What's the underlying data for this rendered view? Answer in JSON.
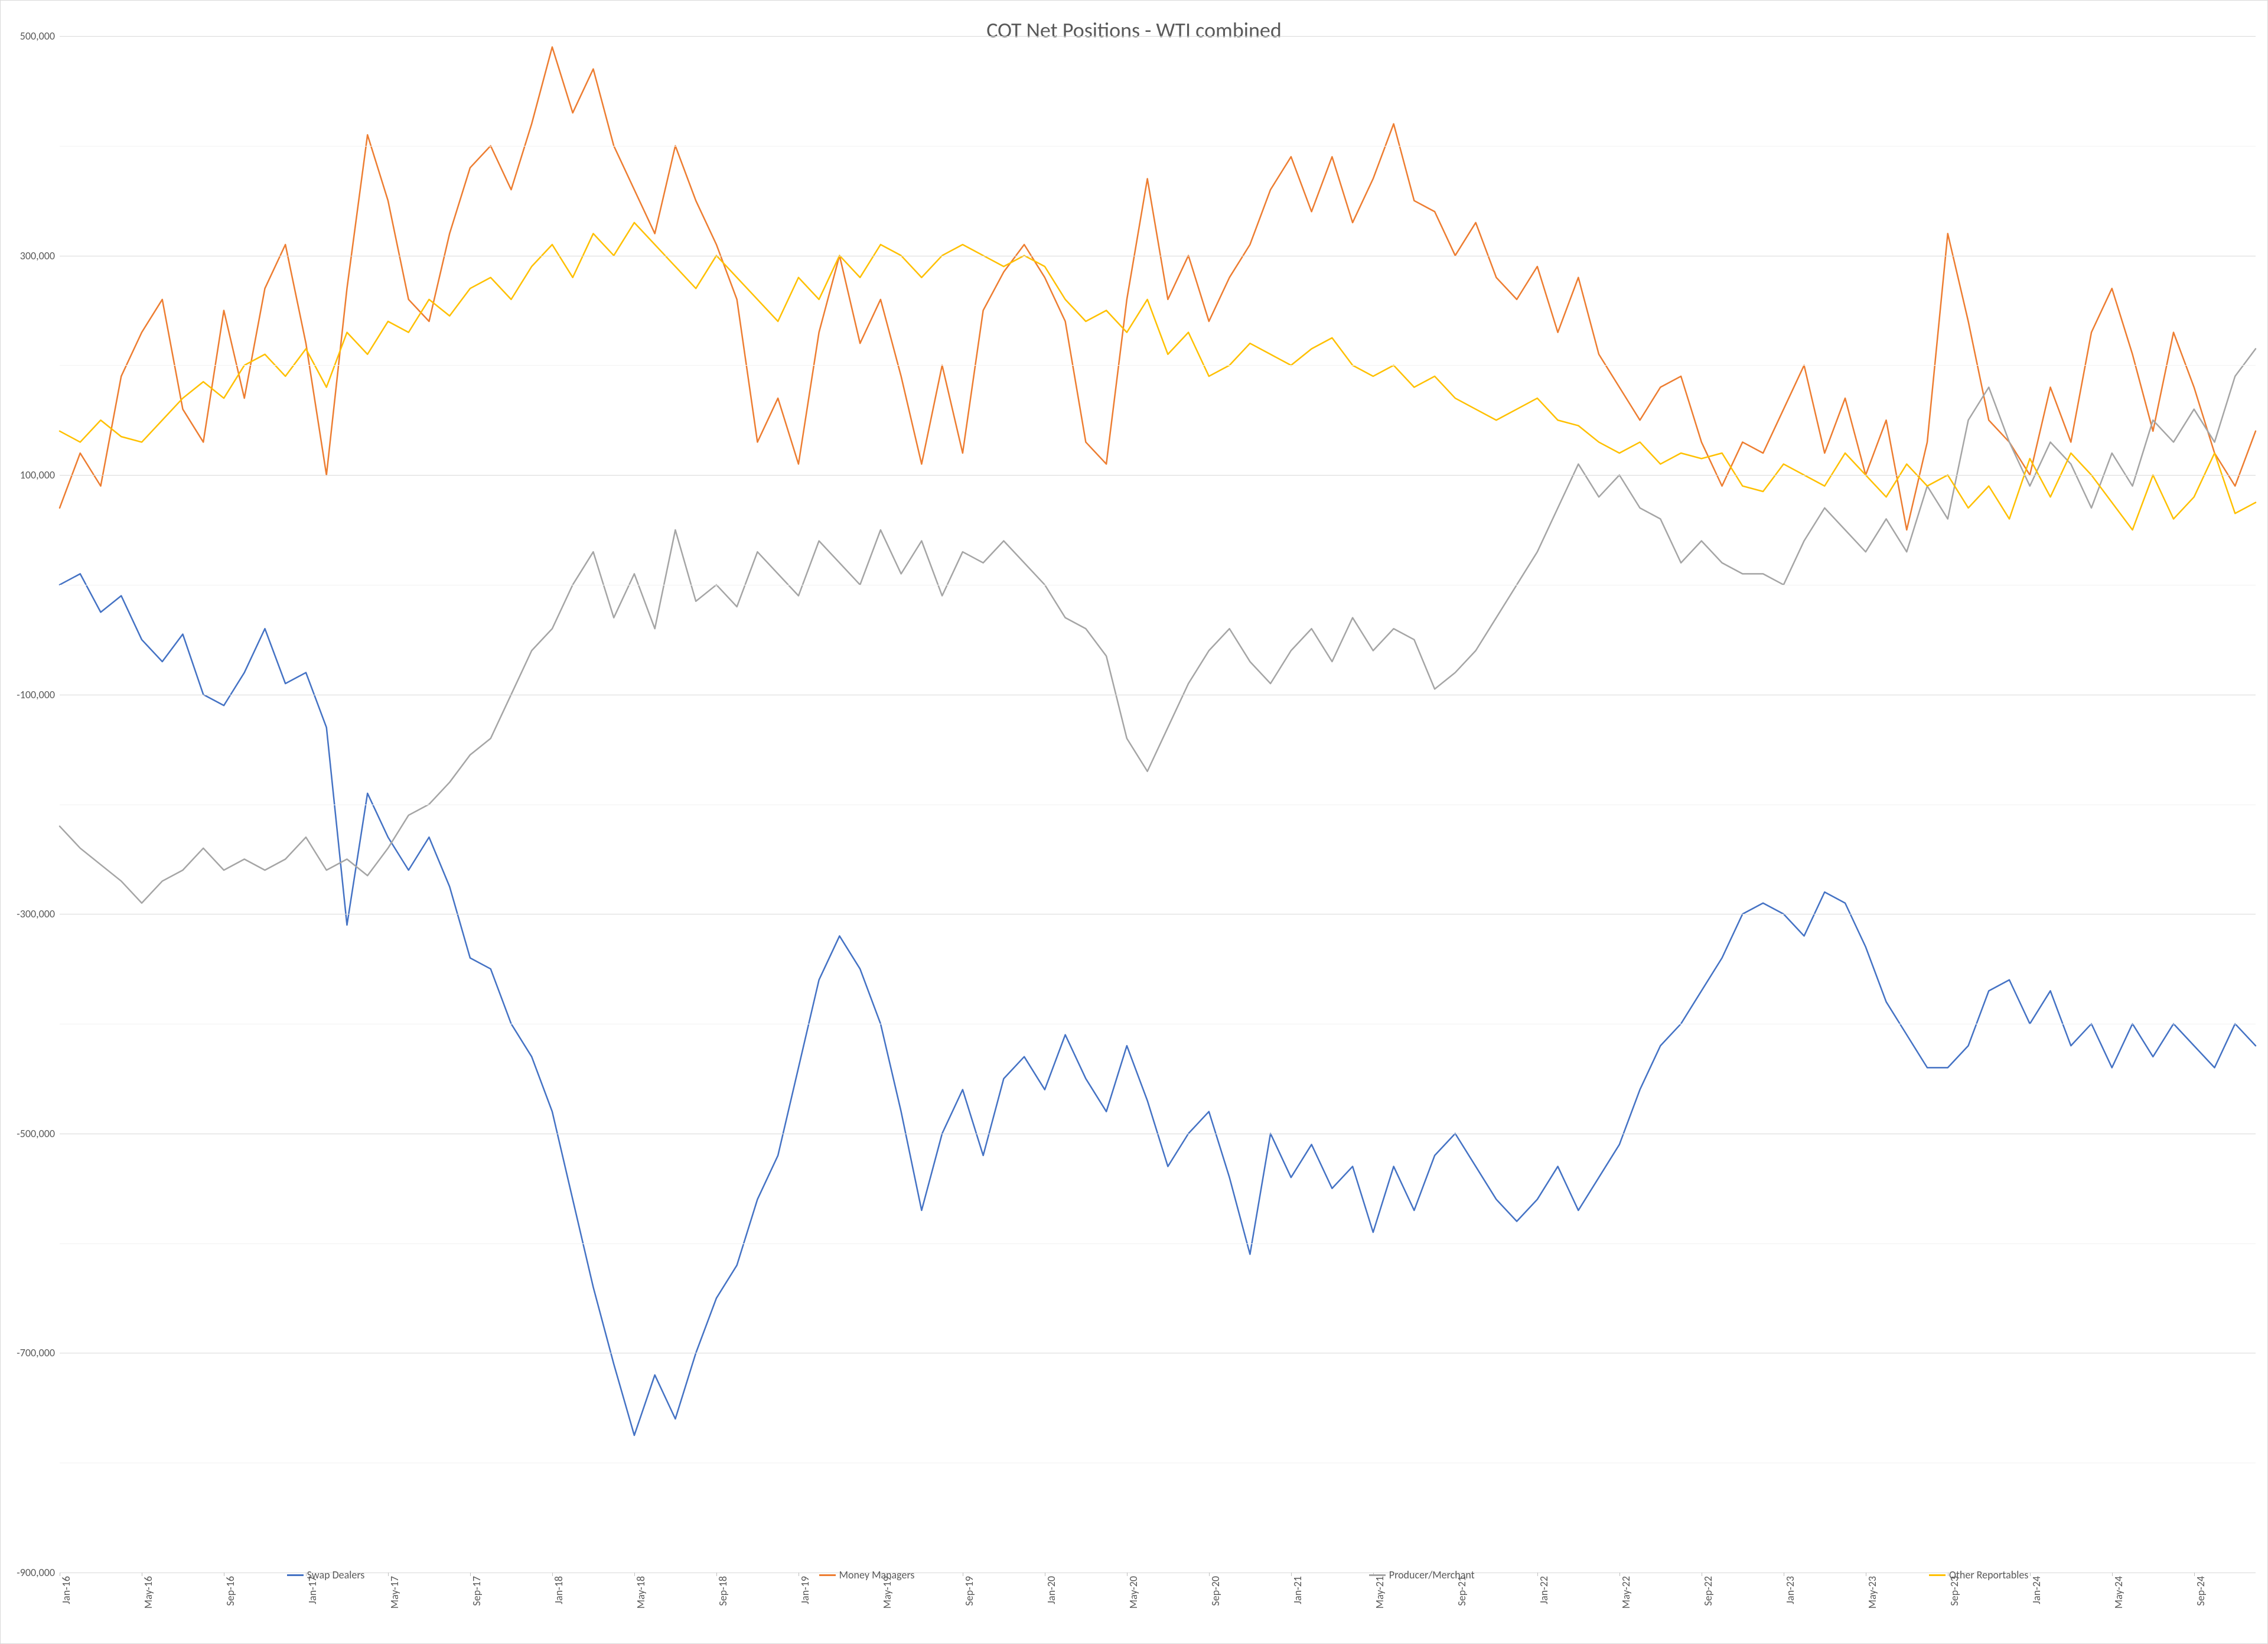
{
  "chart": {
    "type": "line",
    "title": "COT Net Positions - WTI combined",
    "title_fontsize": 36,
    "title_color": "#595959",
    "background_color": "#ffffff",
    "border_color": "#d9d9d9",
    "grid_color": "#d9d9d9",
    "grid_minor_color": "#f2f2f2",
    "axis_label_color": "#595959",
    "axis_label_fontsize": 18,
    "line_width": 2.5,
    "y_axis": {
      "min": -900000,
      "max": 500000,
      "tick_step": 200000,
      "minor_step": 100000,
      "tick_format": "comma",
      "ticks": [
        500000,
        300000,
        100000,
        -100000,
        -300000,
        -500000,
        -700000,
        -900000
      ]
    },
    "x_axis": {
      "tick_rotation": -90,
      "n_points": 108,
      "labels": [
        "Jan-16",
        "",
        "",
        "",
        "May-16",
        "",
        "",
        "",
        "Sep-16",
        "",
        "",
        "",
        "Jan-17",
        "",
        "",
        "",
        "May-17",
        "",
        "",
        "",
        "Sep-17",
        "",
        "",
        "",
        "Jan-18",
        "",
        "",
        "",
        "May-18",
        "",
        "",
        "",
        "Sep-18",
        "",
        "",
        "",
        "Jan-19",
        "",
        "",
        "",
        "May-19",
        "",
        "",
        "",
        "Sep-19",
        "",
        "",
        "",
        "Jan-20",
        "",
        "",
        "",
        "May-20",
        "",
        "",
        "",
        "Sep-20",
        "",
        "",
        "",
        "Jan-21",
        "",
        "",
        "",
        "May-21",
        "",
        "",
        "",
        "Sep-21",
        "",
        "",
        "",
        "Jan-22",
        "",
        "",
        "",
        "May-22",
        "",
        "",
        "",
        "Sep-22",
        "",
        "",
        "",
        "Jan-23",
        "",
        "",
        "",
        "May-23",
        "",
        "",
        "",
        "Sep-23",
        "",
        "",
        "",
        "Jan-24",
        "",
        "",
        "",
        "May-24",
        "",
        "",
        "",
        "Sep-24",
        "",
        "",
        ""
      ],
      "visible_labels": [
        "Jan-16",
        "May-16",
        "Sep-16",
        "Jan-17",
        "May-17",
        "Sep-17",
        "Jan-18",
        "May-18",
        "Sep-18",
        "Jan-19",
        "May-19",
        "Sep-19",
        "Jan-20",
        "May-20",
        "Sep-20",
        "Jan-21",
        "May-21",
        "Sep-21",
        "Jan-22",
        "May-22",
        "Sep-22",
        "Jan-23",
        "May-23",
        "Sep-23",
        "Jan-24",
        "May-24",
        "Sep-24"
      ]
    },
    "legend": {
      "position": "bottom",
      "items": [
        {
          "label": "Swap Dealers",
          "color": "#4472c4"
        },
        {
          "label": "Money Managers",
          "color": "#ed7d31"
        },
        {
          "label": "Producer/Merchant",
          "color": "#a5a5a5"
        },
        {
          "label": "Other Reportables",
          "color": "#ffc000"
        }
      ]
    },
    "series": {
      "swap_dealers": {
        "label": "Swap Dealers",
        "color": "#4472c4",
        "values": [
          0,
          10000,
          -25000,
          -10000,
          -50000,
          -70000,
          -45000,
          -100000,
          -110000,
          -80000,
          -40000,
          -90000,
          -80000,
          -130000,
          -310000,
          -190000,
          -230000,
          -260000,
          -230000,
          -275000,
          -340000,
          -350000,
          -400000,
          -430000,
          -480000,
          -560000,
          -640000,
          -710000,
          -775000,
          -720000,
          -760000,
          -700000,
          -650000,
          -620000,
          -560000,
          -520000,
          -440000,
          -360000,
          -320000,
          -350000,
          -400000,
          -480000,
          -570000,
          -500000,
          -460000,
          -520000,
          -450000,
          -430000,
          -460000,
          -410000,
          -450000,
          -480000,
          -420000,
          -470000,
          -530000,
          -500000,
          -480000,
          -540000,
          -610000,
          -500000,
          -540000,
          -510000,
          -550000,
          -530000,
          -590000,
          -530000,
          -570000,
          -520000,
          -500000,
          -530000,
          -560000,
          -580000,
          -560000,
          -530000,
          -570000,
          -540000,
          -510000,
          -460000,
          -420000,
          -400000,
          -370000,
          -340000,
          -300000,
          -290000,
          -300000,
          -320000,
          -280000,
          -290000,
          -330000,
          -380000,
          -410000,
          -440000,
          -440000,
          -420000,
          -370000,
          -360000,
          -400000,
          -370000,
          -420000,
          -400000,
          -440000,
          -400000,
          -430000,
          -400000,
          -420000,
          -440000,
          -400000,
          -420000
        ]
      },
      "money_managers": {
        "label": "Money Managers",
        "color": "#ed7d31",
        "values": [
          70000,
          120000,
          90000,
          190000,
          230000,
          260000,
          160000,
          130000,
          250000,
          170000,
          270000,
          310000,
          220000,
          100000,
          270000,
          410000,
          350000,
          260000,
          240000,
          320000,
          380000,
          400000,
          360000,
          420000,
          490000,
          430000,
          470000,
          400000,
          360000,
          320000,
          400000,
          350000,
          310000,
          260000,
          130000,
          170000,
          110000,
          230000,
          300000,
          220000,
          260000,
          190000,
          110000,
          200000,
          120000,
          250000,
          285000,
          310000,
          280000,
          240000,
          130000,
          110000,
          260000,
          370000,
          260000,
          300000,
          240000,
          280000,
          310000,
          360000,
          390000,
          340000,
          390000,
          330000,
          370000,
          420000,
          350000,
          340000,
          300000,
          330000,
          280000,
          260000,
          290000,
          230000,
          280000,
          210000,
          180000,
          150000,
          180000,
          190000,
          130000,
          90000,
          130000,
          120000,
          160000,
          200000,
          120000,
          170000,
          100000,
          150000,
          50000,
          130000,
          320000,
          240000,
          150000,
          130000,
          100000,
          180000,
          130000,
          230000,
          270000,
          210000,
          140000,
          230000,
          180000,
          120000,
          90000,
          140000
        ]
      },
      "producer_merchant": {
        "label": "Producer/Merchant",
        "color": "#a5a5a5",
        "values": [
          -220000,
          -240000,
          -255000,
          -270000,
          -290000,
          -270000,
          -260000,
          -240000,
          -260000,
          -250000,
          -260000,
          -250000,
          -230000,
          -260000,
          -250000,
          -265000,
          -240000,
          -210000,
          -200000,
          -180000,
          -155000,
          -140000,
          -100000,
          -60000,
          -40000,
          0,
          30000,
          -30000,
          10000,
          -40000,
          50000,
          -15000,
          0,
          -20000,
          30000,
          10000,
          -10000,
          40000,
          20000,
          0,
          50000,
          10000,
          40000,
          -10000,
          30000,
          20000,
          40000,
          20000,
          0,
          -30000,
          -40000,
          -65000,
          -140000,
          -170000,
          -130000,
          -90000,
          -60000,
          -40000,
          -70000,
          -90000,
          -60000,
          -40000,
          -70000,
          -30000,
          -60000,
          -40000,
          -50000,
          -95000,
          -80000,
          -60000,
          -30000,
          0,
          30000,
          70000,
          110000,
          80000,
          100000,
          70000,
          60000,
          20000,
          40000,
          20000,
          10000,
          10000,
          0,
          40000,
          70000,
          50000,
          30000,
          60000,
          30000,
          90000,
          60000,
          150000,
          180000,
          130000,
          90000,
          130000,
          110000,
          70000,
          120000,
          90000,
          150000,
          130000,
          160000,
          130000,
          190000,
          215000
        ]
      },
      "other_reportables": {
        "label": "Other Reportables",
        "color": "#ffc000",
        "values": [
          140000,
          130000,
          150000,
          135000,
          130000,
          150000,
          170000,
          185000,
          170000,
          200000,
          210000,
          190000,
          215000,
          180000,
          230000,
          210000,
          240000,
          230000,
          260000,
          245000,
          270000,
          280000,
          260000,
          290000,
          310000,
          280000,
          320000,
          300000,
          330000,
          310000,
          290000,
          270000,
          300000,
          280000,
          260000,
          240000,
          280000,
          260000,
          300000,
          280000,
          310000,
          300000,
          280000,
          300000,
          310000,
          300000,
          290000,
          300000,
          290000,
          260000,
          240000,
          250000,
          230000,
          260000,
          210000,
          230000,
          190000,
          200000,
          220000,
          210000,
          200000,
          215000,
          225000,
          200000,
          190000,
          200000,
          180000,
          190000,
          170000,
          160000,
          150000,
          160000,
          170000,
          150000,
          145000,
          130000,
          120000,
          130000,
          110000,
          120000,
          115000,
          120000,
          90000,
          85000,
          110000,
          100000,
          90000,
          120000,
          100000,
          80000,
          110000,
          90000,
          100000,
          70000,
          90000,
          60000,
          115000,
          80000,
          120000,
          100000,
          75000,
          50000,
          100000,
          60000,
          80000,
          120000,
          65000,
          75000
        ]
      }
    }
  }
}
